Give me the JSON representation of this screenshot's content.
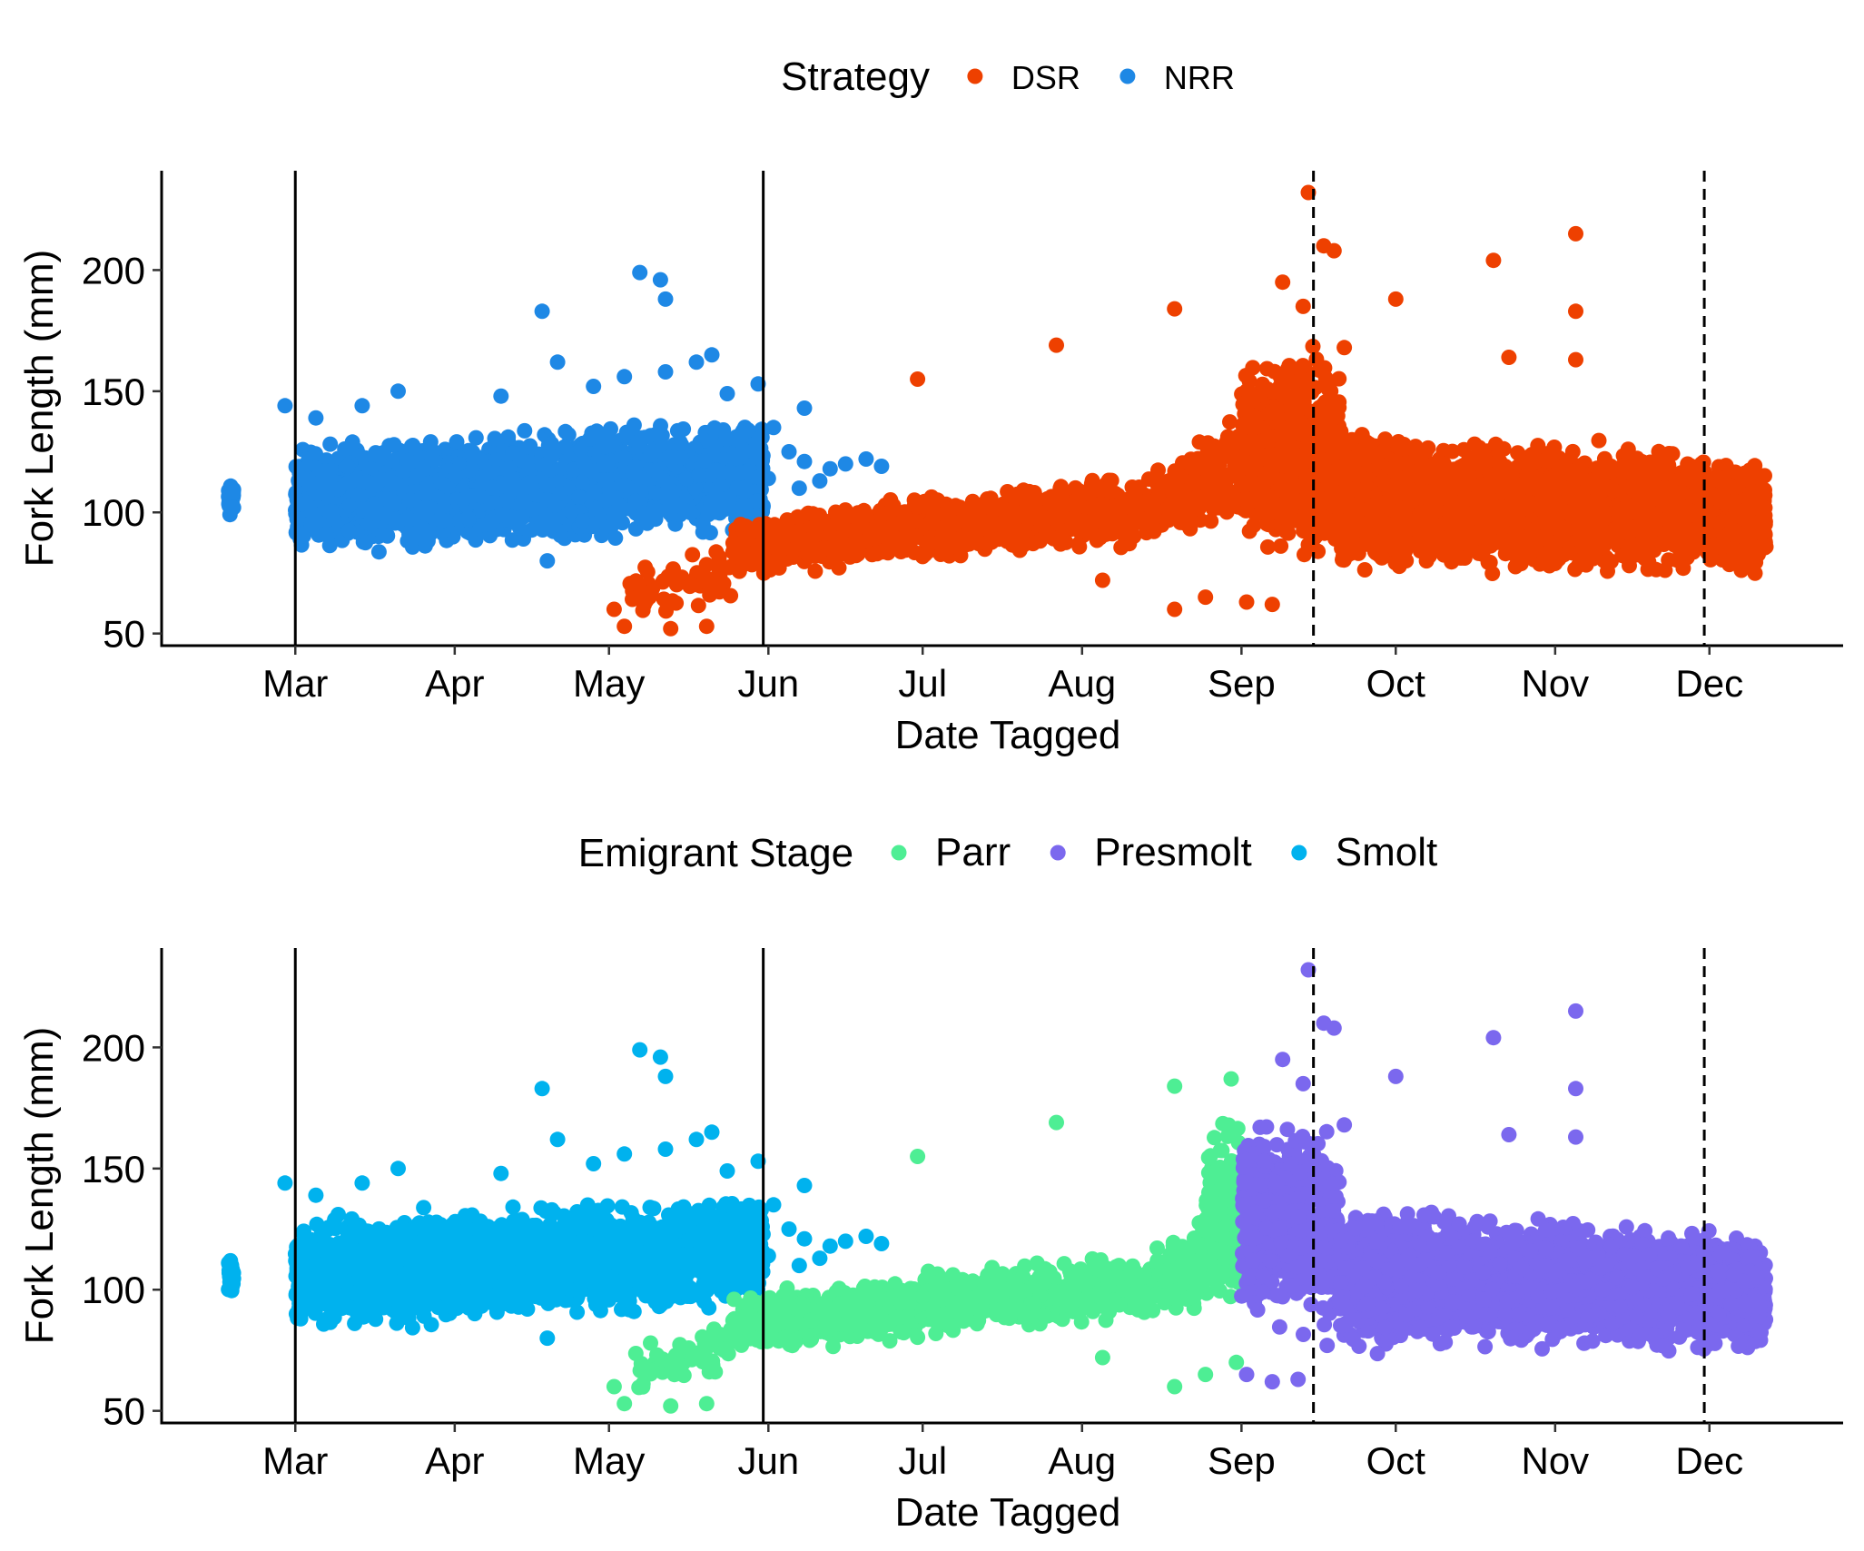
{
  "chart_data": [
    {
      "type": "scatter",
      "title": "",
      "xlabel": "Date Tagged",
      "ylabel": "Fork Length (mm)",
      "x_ticks": [
        "Mar",
        "Apr",
        "May",
        "Jun",
        "Jul",
        "Aug",
        "Sep",
        "Oct",
        "Nov",
        "Dec"
      ],
      "x_tick_dates": [
        "03-01",
        "04-01",
        "05-01",
        "06-01",
        "07-01",
        "08-01",
        "09-01",
        "10-01",
        "11-01",
        "12-01"
      ],
      "xlim": [
        "02-03",
        "12-27"
      ],
      "y_ticks": [
        50,
        100,
        150,
        200
      ],
      "ylim": [
        45,
        241
      ],
      "grid": false,
      "reference_lines": [
        {
          "date": "03-01",
          "style": "solid"
        },
        {
          "date": "05-31",
          "style": "solid"
        },
        {
          "date": "09-15",
          "style": "dashed"
        },
        {
          "date": "11-30",
          "style": "dashed"
        }
      ],
      "legend": {
        "title": "Strategy",
        "position": "top",
        "entries": [
          {
            "label": "DSR",
            "color": "#EE4000"
          },
          {
            "label": "NRR",
            "color": "#1E88E5"
          }
        ]
      },
      "series": [
        {
          "name": "NRR",
          "color": "#1E88E5",
          "dense_bands": [
            {
              "x_start": "02-16",
              "x_end": "02-17",
              "y_start": [
                97,
                115
              ],
              "y_end": [
                97,
                115
              ],
              "count": 30
            },
            {
              "x_start": "03-01",
              "x_end": "05-31",
              "y_start": [
                80,
                132
              ],
              "y_end": [
                90,
                142
              ],
              "count": 2400
            }
          ],
          "points": [
            [
              "02-27",
              144
            ],
            [
              "03-05",
              139
            ],
            [
              "03-14",
              144
            ],
            [
              "03-21",
              150
            ],
            [
              "04-10",
              148
            ],
            [
              "04-18",
              183
            ],
            [
              "04-21",
              162
            ],
            [
              "04-28",
              152
            ],
            [
              "05-04",
              156
            ],
            [
              "05-07",
              199
            ],
            [
              "05-11",
              196
            ],
            [
              "05-12",
              188
            ],
            [
              "05-12",
              158
            ],
            [
              "05-18",
              162
            ],
            [
              "05-21",
              165
            ],
            [
              "05-24",
              149
            ],
            [
              "05-30",
              153
            ],
            [
              "06-02",
              135
            ],
            [
              "06-05",
              125
            ],
            [
              "06-08",
              143
            ],
            [
              "06-08",
              121
            ],
            [
              "06-11",
              113
            ],
            [
              "06-13",
              118
            ],
            [
              "06-16",
              120
            ],
            [
              "06-20",
              122
            ],
            [
              "06-23",
              119
            ],
            [
              "04-19",
              80
            ],
            [
              "06-01",
              114
            ],
            [
              "06-07",
              110
            ]
          ]
        },
        {
          "name": "DSR",
          "color": "#EE4000",
          "dense_bands": [
            {
              "x_start": "05-05",
              "x_end": "05-25",
              "y_start": [
                53,
                80
              ],
              "y_end": [
                62,
                88
              ],
              "count": 60
            },
            {
              "x_start": "05-25",
              "x_end": "07-01",
              "y_start": [
                70,
                100
              ],
              "y_end": [
                78,
                108
              ],
              "count": 500
            },
            {
              "x_start": "07-01",
              "x_end": "08-15",
              "y_start": [
                78,
                110
              ],
              "y_end": [
                85,
                118
              ],
              "count": 500
            },
            {
              "x_start": "08-15",
              "x_end": "09-01",
              "y_start": [
                88,
                118
              ],
              "y_end": [
                90,
                150
              ],
              "count": 180
            },
            {
              "x_start": "09-01",
              "x_end": "09-20",
              "y_start": [
                80,
                170
              ],
              "y_end": [
                75,
                175
              ],
              "count": 650
            },
            {
              "x_start": "09-20",
              "x_end": "12-12",
              "y_start": [
                72,
                140
              ],
              "y_end": [
                72,
                125
              ],
              "count": 3000
            },
            {
              "x_start": "12-01",
              "x_end": "12-12",
              "y_start": [
                85,
                122
              ],
              "y_end": [
                85,
                120
              ],
              "count": 120
            }
          ],
          "points": [
            [
              "05-02",
              60
            ],
            [
              "05-04",
              53
            ],
            [
              "05-13",
              52
            ],
            [
              "05-20",
              53
            ],
            [
              "06-30",
              155
            ],
            [
              "07-27",
              169
            ],
            [
              "08-19",
              184
            ],
            [
              "08-19",
              60
            ],
            [
              "09-09",
              195
            ],
            [
              "09-13",
              185
            ],
            [
              "09-14",
              232
            ],
            [
              "09-17",
              210
            ],
            [
              "09-19",
              208
            ],
            [
              "09-21",
              168
            ],
            [
              "10-01",
              188
            ],
            [
              "10-20",
              204
            ],
            [
              "10-23",
              164
            ],
            [
              "11-05",
              163
            ],
            [
              "11-05",
              215
            ],
            [
              "11-05",
              183
            ],
            [
              "08-05",
              72
            ],
            [
              "08-25",
              65
            ],
            [
              "09-02",
              63
            ],
            [
              "09-07",
              62
            ]
          ]
        }
      ]
    },
    {
      "type": "scatter",
      "title": "",
      "xlabel": "Date Tagged",
      "ylabel": "Fork Length (mm)",
      "x_ticks": [
        "Mar",
        "Apr",
        "May",
        "Jun",
        "Jul",
        "Aug",
        "Sep",
        "Oct",
        "Nov",
        "Dec"
      ],
      "x_tick_dates": [
        "03-01",
        "04-01",
        "05-01",
        "06-01",
        "07-01",
        "08-01",
        "09-01",
        "10-01",
        "11-01",
        "12-01"
      ],
      "xlim": [
        "02-03",
        "12-27"
      ],
      "y_ticks": [
        50,
        100,
        150,
        200
      ],
      "ylim": [
        45,
        241
      ],
      "grid": false,
      "reference_lines": [
        {
          "date": "03-01",
          "style": "solid"
        },
        {
          "date": "05-31",
          "style": "solid"
        },
        {
          "date": "09-15",
          "style": "dashed"
        },
        {
          "date": "11-30",
          "style": "dashed"
        }
      ],
      "legend": {
        "title": "Emigrant Stage",
        "position": "top",
        "entries": [
          {
            "label": "Parr",
            "color": "#4EEE94"
          },
          {
            "label": "Presmolt",
            "color": "#7B68EE"
          },
          {
            "label": "Smolt",
            "color": "#00B2EE"
          }
        ]
      },
      "series": [
        {
          "name": "Smolt",
          "color": "#00B2EE",
          "dense_bands": [
            {
              "x_start": "02-16",
              "x_end": "02-17",
              "y_start": [
                97,
                115
              ],
              "y_end": [
                97,
                115
              ],
              "count": 30
            },
            {
              "x_start": "03-01",
              "x_end": "05-31",
              "y_start": [
                80,
                132
              ],
              "y_end": [
                90,
                142
              ],
              "count": 2400
            }
          ],
          "points": [
            [
              "02-27",
              144
            ],
            [
              "03-05",
              139
            ],
            [
              "03-14",
              144
            ],
            [
              "03-21",
              150
            ],
            [
              "04-10",
              148
            ],
            [
              "04-18",
              183
            ],
            [
              "04-21",
              162
            ],
            [
              "04-28",
              152
            ],
            [
              "05-04",
              156
            ],
            [
              "05-07",
              199
            ],
            [
              "05-11",
              196
            ],
            [
              "05-12",
              188
            ],
            [
              "05-12",
              158
            ],
            [
              "05-18",
              162
            ],
            [
              "05-21",
              165
            ],
            [
              "05-24",
              149
            ],
            [
              "05-30",
              153
            ],
            [
              "06-02",
              135
            ],
            [
              "06-05",
              125
            ],
            [
              "06-08",
              143
            ],
            [
              "06-08",
              121
            ],
            [
              "06-11",
              113
            ],
            [
              "06-13",
              118
            ],
            [
              "06-16",
              120
            ],
            [
              "06-20",
              122
            ],
            [
              "06-23",
              119
            ],
            [
              "04-19",
              80
            ],
            [
              "06-01",
              114
            ],
            [
              "06-07",
              110
            ]
          ]
        },
        {
          "name": "Parr",
          "color": "#4EEE94",
          "dense_bands": [
            {
              "x_start": "05-05",
              "x_end": "05-25",
              "y_start": [
                53,
                80
              ],
              "y_end": [
                62,
                88
              ],
              "count": 60
            },
            {
              "x_start": "05-25",
              "x_end": "07-01",
              "y_start": [
                70,
                100
              ],
              "y_end": [
                78,
                108
              ],
              "count": 500
            },
            {
              "x_start": "07-01",
              "x_end": "08-15",
              "y_start": [
                78,
                110
              ],
              "y_end": [
                85,
                118
              ],
              "count": 500
            },
            {
              "x_start": "08-15",
              "x_end": "09-01",
              "y_start": [
                88,
                118
              ],
              "y_end": [
                90,
                150
              ],
              "count": 180
            },
            {
              "x_start": "08-25",
              "x_end": "09-01",
              "y_start": [
                100,
                170
              ],
              "y_end": [
                90,
                180
              ],
              "count": 120
            }
          ],
          "points": [
            [
              "05-02",
              60
            ],
            [
              "05-04",
              53
            ],
            [
              "05-13",
              52
            ],
            [
              "05-20",
              53
            ],
            [
              "06-30",
              155
            ],
            [
              "07-27",
              169
            ],
            [
              "08-19",
              184
            ],
            [
              "08-19",
              60
            ],
            [
              "08-30",
              187
            ],
            [
              "08-05",
              72
            ],
            [
              "08-25",
              65
            ],
            [
              "08-31",
              70
            ]
          ]
        },
        {
          "name": "Presmolt",
          "color": "#7B68EE",
          "dense_bands": [
            {
              "x_start": "09-01",
              "x_end": "09-20",
              "y_start": [
                80,
                175
              ],
              "y_end": [
                75,
                175
              ],
              "count": 550
            },
            {
              "x_start": "09-20",
              "x_end": "12-12",
              "y_start": [
                72,
                140
              ],
              "y_end": [
                72,
                125
              ],
              "count": 3000
            },
            {
              "x_start": "12-01",
              "x_end": "12-12",
              "y_start": [
                85,
                122
              ],
              "y_end": [
                85,
                120
              ],
              "count": 120
            }
          ],
          "points": [
            [
              "09-09",
              195
            ],
            [
              "09-13",
              185
            ],
            [
              "09-14",
              232
            ],
            [
              "09-17",
              210
            ],
            [
              "09-19",
              208
            ],
            [
              "09-21",
              168
            ],
            [
              "10-01",
              188
            ],
            [
              "10-20",
              204
            ],
            [
              "10-23",
              164
            ],
            [
              "11-05",
              163
            ],
            [
              "11-05",
              215
            ],
            [
              "11-05",
              183
            ],
            [
              "09-02",
              65
            ],
            [
              "09-07",
              62
            ],
            [
              "09-12",
              63
            ]
          ]
        }
      ]
    }
  ]
}
